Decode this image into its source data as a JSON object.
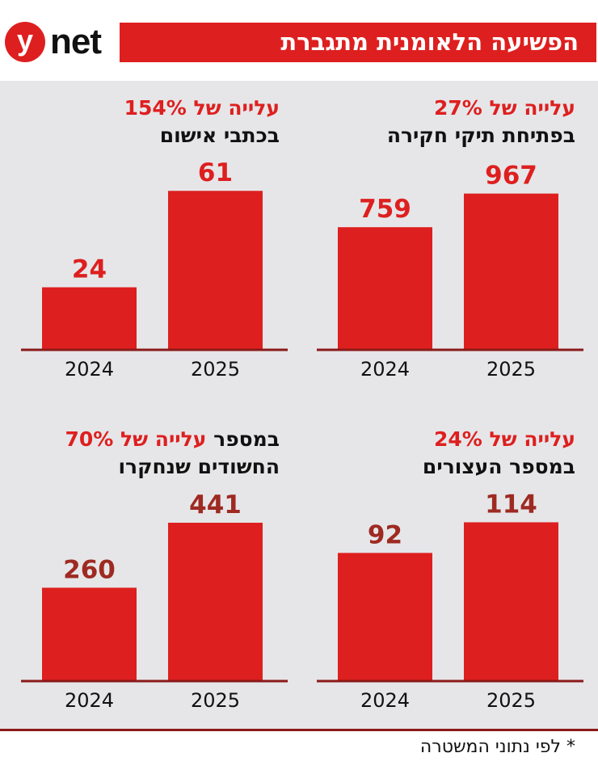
{
  "header": {
    "logo_letter": "y",
    "logo_word": "net",
    "title": "הפשיעה הלאומנית מתגברת"
  },
  "colors": {
    "accent": "#de1f1f",
    "dark_red": "#8b1a1a",
    "panel": "#e6e6e8"
  },
  "footnote": "* לפי נתוני המשטרה",
  "chart_data": [
    {
      "type": "bar",
      "title_highlight": "עלייה של 27%",
      "title": "בפתיחת תיקי חקירה",
      "categories": [
        "2024",
        "2025"
      ],
      "values": [
        759,
        967
      ],
      "value_labels": [
        "759",
        "967"
      ],
      "ylim": [
        0,
        1000
      ]
    },
    {
      "type": "bar",
      "title_highlight": "עלייה של 154%",
      "title": "בכתבי אישום",
      "categories": [
        "2024",
        "2025"
      ],
      "values": [
        24,
        61
      ],
      "value_labels": [
        "24",
        "61"
      ],
      "ylim": [
        0,
        62
      ]
    },
    {
      "type": "bar",
      "title_highlight": "עלייה של 24%",
      "title": "במספר העצורים",
      "categories": [
        "2024",
        "2025"
      ],
      "values": [
        92,
        114
      ],
      "value_labels": [
        "92",
        "114"
      ],
      "ylim": [
        0,
        116
      ]
    },
    {
      "type": "bar",
      "title_highlight": "עלייה של 70%",
      "title_tail": "במספר",
      "title": "החשודים שנחקרו",
      "categories": [
        "2024",
        "2025"
      ],
      "values": [
        260,
        441
      ],
      "value_labels": [
        "260",
        "441"
      ],
      "ylim": [
        0,
        450
      ]
    }
  ]
}
